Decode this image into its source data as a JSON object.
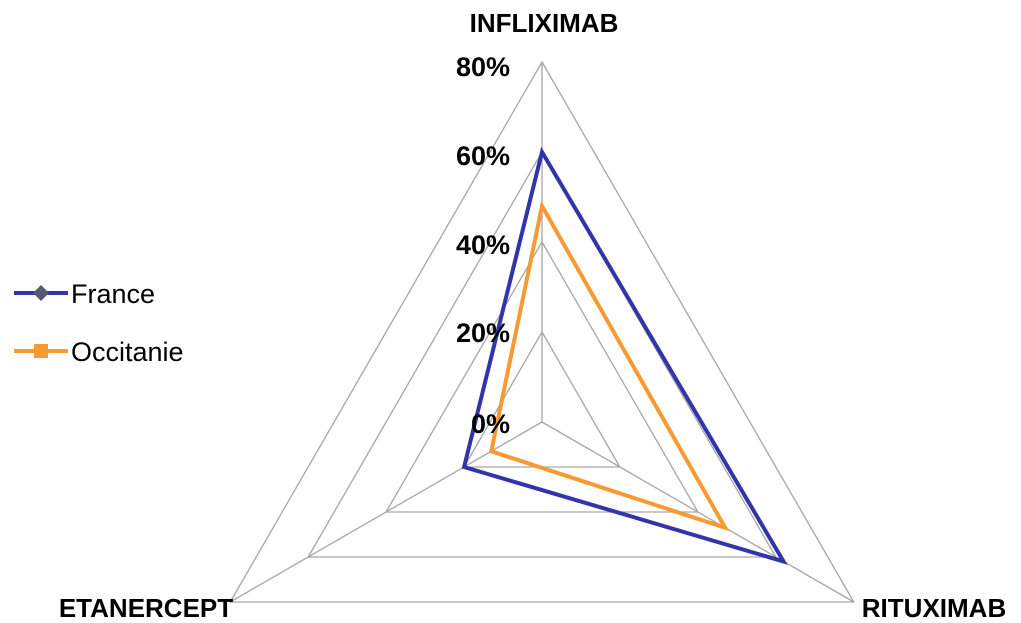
{
  "chart_data": {
    "type": "radar",
    "title": "",
    "axes": [
      "INFLIXIMAB",
      "RITUXIMAB",
      "ETANERCEPT"
    ],
    "ticks": [
      "0%",
      "20%",
      "40%",
      "60%",
      "80%"
    ],
    "rlim": [
      0,
      0.8
    ],
    "grid": true,
    "legend_position": "left",
    "series": [
      {
        "name": "France",
        "values": [
          0.6,
          0.62,
          0.2
        ],
        "color": "#3333aa",
        "marker": "diamond",
        "marker_color": "#555a6e"
      },
      {
        "name": "Occitanie",
        "values": [
          0.48,
          0.47,
          0.13
        ],
        "color": "#f79a33",
        "marker": "square",
        "marker_color": "#f79a33"
      }
    ]
  }
}
